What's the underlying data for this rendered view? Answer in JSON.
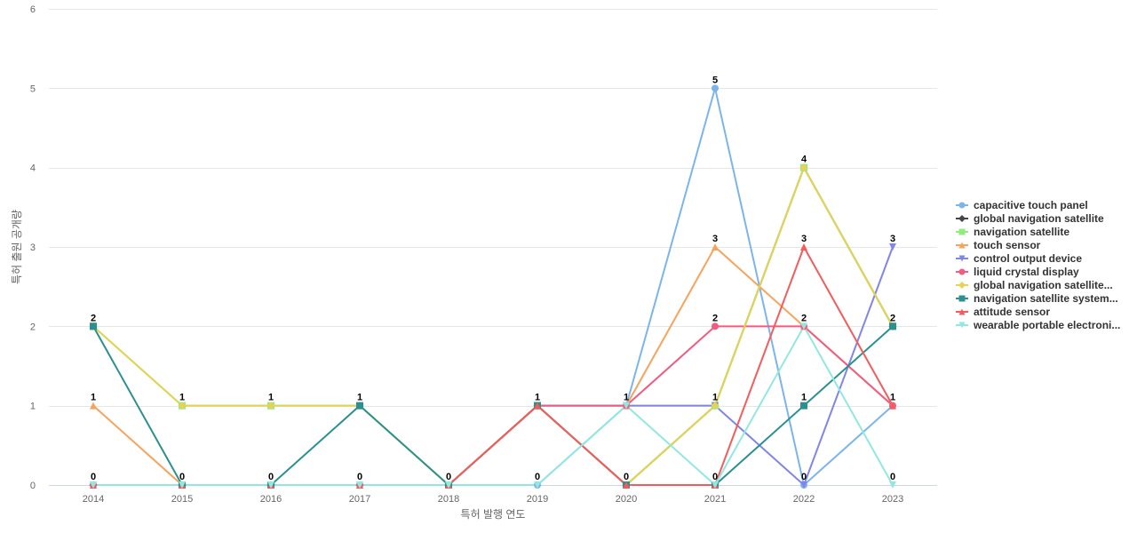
{
  "chart_data": {
    "type": "line",
    "title": "",
    "xlabel": "특허 발행 연도",
    "ylabel": "특허 출원 공개량",
    "ylim": [
      0,
      6
    ],
    "yticks": [
      0,
      1,
      2,
      3,
      4,
      5,
      6
    ],
    "categories": [
      "2014",
      "2015",
      "2016",
      "2017",
      "2018",
      "2019",
      "2020",
      "2021",
      "2022",
      "2023"
    ],
    "legend_position": "right",
    "grid": true,
    "data_label_points": [
      [
        0,
        2
      ],
      [
        0,
        1
      ],
      [
        0,
        0
      ],
      [
        1,
        1
      ],
      [
        1,
        0
      ],
      [
        2,
        1
      ],
      [
        2,
        0
      ],
      [
        3,
        1
      ],
      [
        3,
        0
      ],
      [
        4,
        0
      ],
      [
        5,
        1
      ],
      [
        5,
        0
      ],
      [
        6,
        1
      ],
      [
        6,
        0
      ],
      [
        7,
        5
      ],
      [
        7,
        3
      ],
      [
        7,
        2
      ],
      [
        7,
        1
      ],
      [
        7,
        0
      ],
      [
        8,
        4
      ],
      [
        8,
        3
      ],
      [
        8,
        2
      ],
      [
        8,
        1
      ],
      [
        8,
        0
      ],
      [
        9,
        3
      ],
      [
        9,
        2
      ],
      [
        9,
        1
      ],
      [
        9,
        0
      ]
    ],
    "series": [
      {
        "name": "capacitive touch panel",
        "color": "#7cb5ec",
        "marker": "circle",
        "values": [
          0,
          0,
          0,
          0,
          0,
          0,
          1,
          5,
          0,
          1
        ]
      },
      {
        "name": "global navigation satellite",
        "color": "#434348",
        "marker": "diamond",
        "values": [
          0,
          0,
          0,
          0,
          0,
          1,
          0,
          1,
          4,
          2
        ]
      },
      {
        "name": "navigation satellite",
        "color": "#90ed7d",
        "marker": "square",
        "values": [
          2,
          1,
          1,
          1,
          0,
          1,
          0,
          1,
          4,
          2
        ]
      },
      {
        "name": "touch sensor",
        "color": "#f7a35c",
        "marker": "triangle",
        "values": [
          1,
          0,
          0,
          0,
          0,
          1,
          1,
          3,
          2,
          1
        ]
      },
      {
        "name": "control output device",
        "color": "#8085e9",
        "marker": "triangle-down",
        "values": [
          0,
          0,
          0,
          0,
          0,
          1,
          1,
          1,
          0,
          3
        ]
      },
      {
        "name": "liquid crystal display",
        "color": "#f15c80",
        "marker": "circle",
        "values": [
          0,
          0,
          0,
          0,
          0,
          1,
          1,
          2,
          2,
          1
        ]
      },
      {
        "name": "global navigation satellite...",
        "color": "#e4d354",
        "marker": "diamond",
        "values": [
          2,
          1,
          1,
          1,
          0,
          1,
          0,
          1,
          4,
          2
        ]
      },
      {
        "name": "navigation satellite system...",
        "color": "#2b908f",
        "marker": "square",
        "values": [
          2,
          0,
          0,
          1,
          0,
          1,
          0,
          0,
          1,
          2
        ]
      },
      {
        "name": "attitude sensor",
        "color": "#f45b5b",
        "marker": "triangle",
        "values": [
          0,
          0,
          0,
          0,
          0,
          1,
          0,
          0,
          3,
          1
        ]
      },
      {
        "name": "wearable portable electroni...",
        "color": "#91e8e1",
        "marker": "triangle-down",
        "values": [
          0,
          0,
          0,
          0,
          0,
          0,
          1,
          0,
          2,
          0
        ]
      }
    ]
  }
}
